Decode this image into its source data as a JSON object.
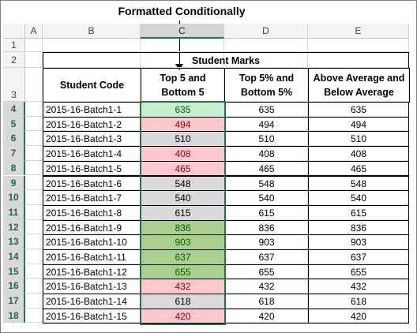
{
  "caption": "Formatted Conditionally",
  "columns": [
    "A",
    "B",
    "C",
    "D",
    "E"
  ],
  "rows_header": [
    "1",
    "2",
    "3",
    "4",
    "5",
    "6",
    "7",
    "8",
    "9",
    "10",
    "11",
    "12",
    "13",
    "14",
    "15",
    "16",
    "17",
    "18"
  ],
  "table": {
    "title": "Student Marks",
    "headers": {
      "code": "Student Code",
      "top5": "Top 5 and Bottom 5",
      "top5pct": "Top 5% and Bottom 5%",
      "avg": "Above Average and Below Average"
    },
    "rows": [
      {
        "code": "2015-16-Batch1-1",
        "mark": "635",
        "fmt": "green"
      },
      {
        "code": "2015-16-Batch1-2",
        "mark": "494",
        "fmt": "red"
      },
      {
        "code": "2015-16-Batch1-3",
        "mark": "510",
        "fmt": "gray"
      },
      {
        "code": "2015-16-Batch1-4",
        "mark": "408",
        "fmt": "red"
      },
      {
        "code": "2015-16-Batch1-5",
        "mark": "465",
        "fmt": "red"
      },
      {
        "code": "2015-16-Batch1-6",
        "mark": "548",
        "fmt": "gray"
      },
      {
        "code": "2015-16-Batch1-7",
        "mark": "540",
        "fmt": "gray"
      },
      {
        "code": "2015-16-Batch1-8",
        "mark": "615",
        "fmt": "gray"
      },
      {
        "code": "2015-16-Batch1-9",
        "mark": "836",
        "fmt": "mgreen"
      },
      {
        "code": "2015-16-Batch1-10",
        "mark": "903",
        "fmt": "mgreen"
      },
      {
        "code": "2015-16-Batch1-11",
        "mark": "637",
        "fmt": "mgreen"
      },
      {
        "code": "2015-16-Batch1-12",
        "mark": "655",
        "fmt": "mgreen"
      },
      {
        "code": "2015-16-Batch1-13",
        "mark": "432",
        "fmt": "red"
      },
      {
        "code": "2015-16-Batch1-14",
        "mark": "618",
        "fmt": "gray"
      },
      {
        "code": "2015-16-Batch1-15",
        "mark": "420",
        "fmt": "red"
      }
    ]
  },
  "colors": {
    "selection": "#217346",
    "green_fill": "#c6efce",
    "red_fill": "#ffc7ce",
    "gray_fill": "#d9d9d9",
    "mgreen_fill": "#a9d08e"
  },
  "selected_column": "C",
  "selected_rows_from": "4",
  "selected_rows_to": "18"
}
